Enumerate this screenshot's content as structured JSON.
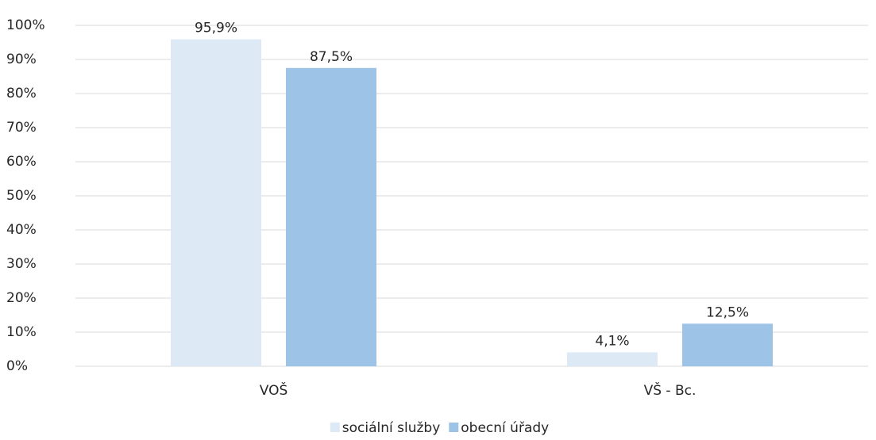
{
  "chart_data": {
    "type": "bar",
    "categories": [
      "VOŠ",
      "VŠ - Bc."
    ],
    "series": [
      {
        "name": "sociální služby",
        "color": "#ddeaf6",
        "values": [
          95.9,
          4.1
        ],
        "value_labels": [
          "95,9%",
          "4,1%"
        ]
      },
      {
        "name": "obecní úřady",
        "color": "#9dc3e6",
        "values": [
          87.5,
          12.5
        ],
        "value_labels": [
          "87,5%",
          "12,5%"
        ]
      }
    ],
    "ylim": [
      0,
      100
    ],
    "yticks": [
      {
        "value": 0,
        "label": "0%"
      },
      {
        "value": 10,
        "label": "10%"
      },
      {
        "value": 20,
        "label": "20%"
      },
      {
        "value": 30,
        "label": "30%"
      },
      {
        "value": 40,
        "label": "40%"
      },
      {
        "value": 50,
        "label": "50%"
      },
      {
        "value": 60,
        "label": "60%"
      },
      {
        "value": 70,
        "label": "70%"
      },
      {
        "value": 80,
        "label": "80%"
      },
      {
        "value": 90,
        "label": "90%"
      },
      {
        "value": 100,
        "label": "100%"
      }
    ],
    "grid": true,
    "legend": "bottom"
  }
}
